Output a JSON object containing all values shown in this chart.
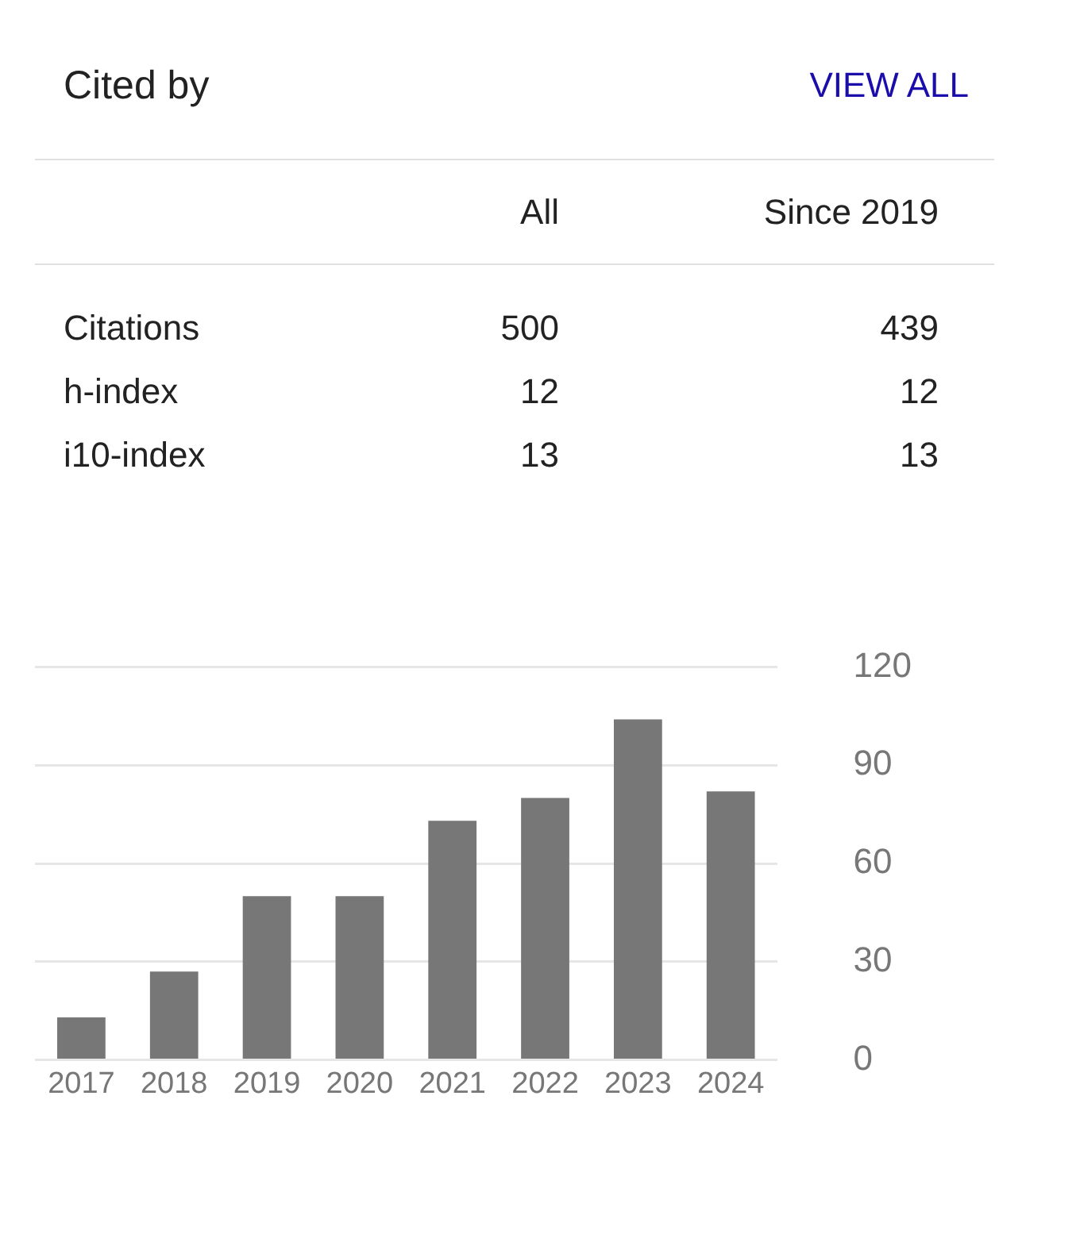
{
  "chart_data": [
    {
      "type": "other",
      "title": "Cited by",
      "annotations": [
        "VIEW ALL",
        "All",
        "Since 2019",
        "Citations",
        "500",
        "439",
        "h-index",
        "12",
        "12",
        "i10-index",
        "13",
        "13"
      ]
    },
    {
      "type": "bar",
      "categories": [
        "2017",
        "2018",
        "2019",
        "2020",
        "2021",
        "2022",
        "2023",
        "2024"
      ],
      "values": [
        13,
        27,
        50,
        50,
        73,
        80,
        104,
        82
      ],
      "color": "#777777",
      "ylim": [
        0,
        120
      ],
      "yticks": [
        0,
        30,
        60,
        90,
        120
      ],
      "grid": "y"
    }
  ]
}
